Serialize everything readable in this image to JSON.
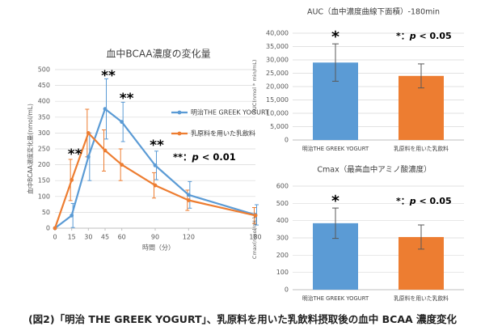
{
  "caption": "(図2)「明治 THE GREEK YOGURT」、乳原料を用いた乳飲料摂取後の血中 BCAA 濃度変化",
  "colors": {
    "blue": "#5B9BD5",
    "orange": "#ED7D31",
    "grid": "#d9d9d9",
    "axis": "#bfbfbf",
    "text": "#595959"
  },
  "chart_data": [
    {
      "type": "line",
      "title": "血中BCAA濃度の変化量",
      "xlabel": "時間（分）",
      "ylabel": "血中BCAA濃度変化量(nmol/mL)",
      "x": [
        0,
        15,
        30,
        45,
        60,
        90,
        120,
        180
      ],
      "xlim": [
        0,
        180
      ],
      "ylim": [
        0,
        500
      ],
      "yticks": [
        0,
        50,
        100,
        150,
        200,
        250,
        300,
        350,
        400,
        450,
        500
      ],
      "series": [
        {
          "name": "明治THE GREEK YOGURT",
          "color": "#5B9BD5",
          "values": [
            0,
            40,
            225,
            376,
            335,
            198,
            105,
            42
          ],
          "errors": [
            0,
            38,
            75,
            95,
            62,
            45,
            42,
            32
          ]
        },
        {
          "name": "乳原料を用いた乳飲料",
          "color": "#ED7D31",
          "values": [
            0,
            152,
            300,
            245,
            200,
            135,
            88,
            40
          ],
          "errors": [
            0,
            65,
            75,
            65,
            50,
            40,
            32,
            25
          ]
        }
      ],
      "annotations": [
        {
          "x": 15,
          "text": "**"
        },
        {
          "x": 45,
          "text": "**"
        },
        {
          "x": 60,
          "text": "**"
        },
        {
          "x": 90,
          "text": "**"
        }
      ],
      "sig_note": {
        "prefix": "**：",
        "p": "p",
        "rest": " < 0.01"
      }
    },
    {
      "type": "bar",
      "title": "AUC（血中濃度曲線下面積）-180min",
      "ylabel": "AUC(nmol * min/mL)",
      "categories": [
        "明治THE GREEK YOGURT",
        "乳原料を用いた乳飲料"
      ],
      "values": [
        29000,
        24000
      ],
      "errors": [
        7000,
        4500
      ],
      "colors": [
        "#5B9BD5",
        "#ED7D31"
      ],
      "ylim": [
        0,
        40000
      ],
      "yticks": [
        "0",
        "5,000",
        "10,000",
        "15,000",
        "20,000",
        "25,000",
        "30,000",
        "35,000",
        "40,000"
      ],
      "annotation": "*",
      "sig_note": {
        "prefix": "*：",
        "p": "p",
        "rest": " < 0.05"
      }
    },
    {
      "type": "bar",
      "title": "Cmax（最高血中アミノ酸濃度）",
      "ylabel": "Cmax(nmol/mL)",
      "categories": [
        "明治THE GREEK YOGURT",
        "乳原料を用いた乳飲料"
      ],
      "values": [
        385,
        305
      ],
      "errors": [
        88,
        70
      ],
      "colors": [
        "#5B9BD5",
        "#ED7D31"
      ],
      "ylim": [
        0,
        600
      ],
      "yticks": [
        "0",
        "100",
        "200",
        "300",
        "400",
        "500",
        "600"
      ],
      "annotation": "*",
      "sig_note": {
        "prefix": "*：",
        "p": "p",
        "rest": " < 0.05"
      }
    }
  ]
}
